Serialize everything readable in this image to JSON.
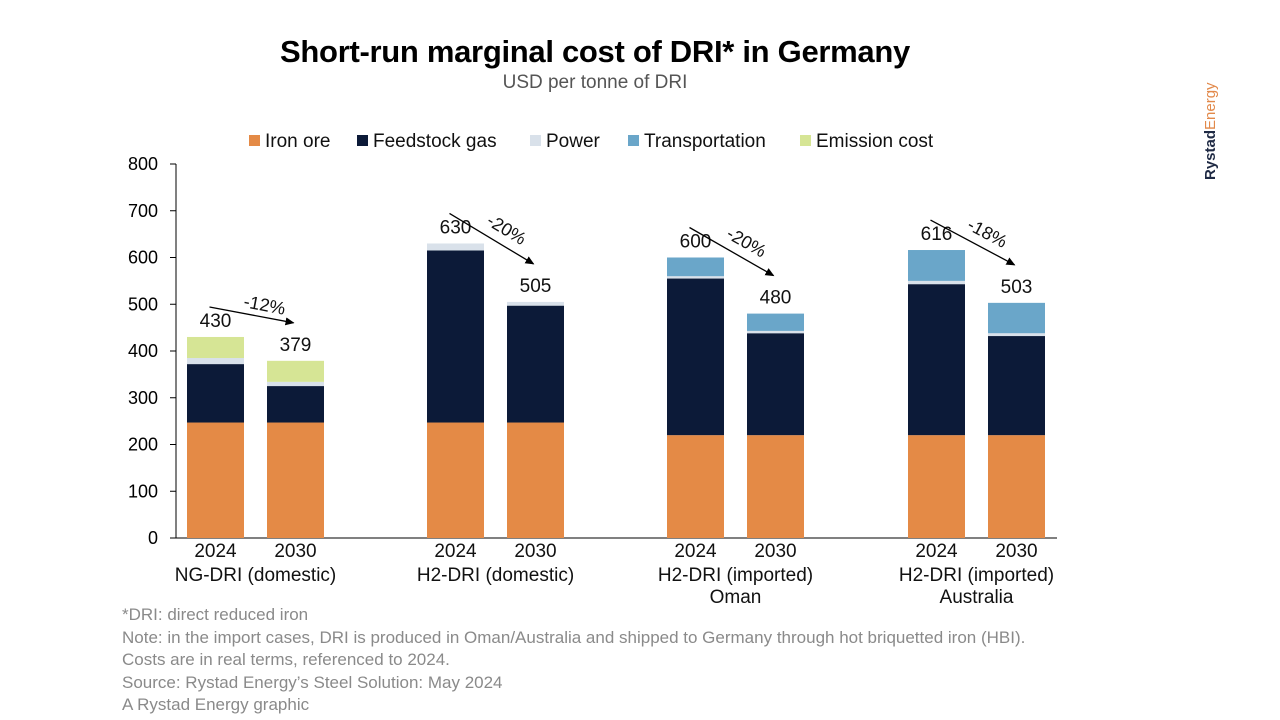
{
  "chart_data": {
    "type": "bar",
    "stacked": true,
    "title": "Short-run marginal cost of DRI* in Germany",
    "subtitle": "USD per tonne of DRI",
    "ylim": [
      0,
      800
    ],
    "yticks": [
      0,
      100,
      200,
      300,
      400,
      500,
      600,
      700,
      800
    ],
    "legend_position": "top",
    "series_meta": [
      {
        "name": "Iron ore",
        "color": "#E48A46"
      },
      {
        "name": "Feedstock gas",
        "color": "#0C1A38"
      },
      {
        "name": "Power",
        "color": "#D9E1EA"
      },
      {
        "name": "Transportation",
        "color": "#6AA6C9"
      },
      {
        "name": "Emission cost",
        "color": "#D6E595"
      }
    ],
    "groups": [
      {
        "label_lines": [
          "NG-DRI (domestic)"
        ],
        "change_label": "-12%",
        "bars": [
          {
            "year": "2024",
            "total_label": "430",
            "values": [
              247,
              125,
              13,
              0,
              45
            ]
          },
          {
            "year": "2030",
            "total_label": "379",
            "values": [
              247,
              78,
              9,
              0,
              45
            ]
          }
        ]
      },
      {
        "label_lines": [
          "H2-DRI (domestic)"
        ],
        "change_label": "-20%",
        "bars": [
          {
            "year": "2024",
            "total_label": "630",
            "values": [
              247,
              368,
              15,
              0,
              0
            ]
          },
          {
            "year": "2030",
            "total_label": "505",
            "values": [
              247,
              250,
              8,
              0,
              0
            ]
          }
        ]
      },
      {
        "label_lines": [
          "H2-DRI (imported)",
          "Oman"
        ],
        "change_label": "-20%",
        "bars": [
          {
            "year": "2024",
            "total_label": "600",
            "values": [
              220,
              335,
              5,
              40,
              0
            ]
          },
          {
            "year": "2030",
            "total_label": "480",
            "values": [
              220,
              218,
              5,
              37,
              0
            ]
          }
        ]
      },
      {
        "label_lines": [
          "H2-DRI (imported)",
          "Australia"
        ],
        "change_label": "-18%",
        "bars": [
          {
            "year": "2024",
            "total_label": "616",
            "values": [
              220,
              323,
              7,
              66,
              0
            ]
          },
          {
            "year": "2030",
            "total_label": "503",
            "values": [
              220,
              212,
              6,
              65,
              0
            ]
          }
        ]
      }
    ]
  },
  "brand": {
    "part1": "Rystad",
    "part2": "Energy"
  },
  "notes": [
    "*DRI: direct reduced iron",
    "Note: in the import cases, DRI is produced in Oman/Australia and shipped to Germany through hot briquetted iron (HBI).",
    "Costs are in real terms, referenced to 2024.",
    "Source: Rystad Energy’s Steel Solution: May 2024",
    "A Rystad Energy graphic"
  ]
}
